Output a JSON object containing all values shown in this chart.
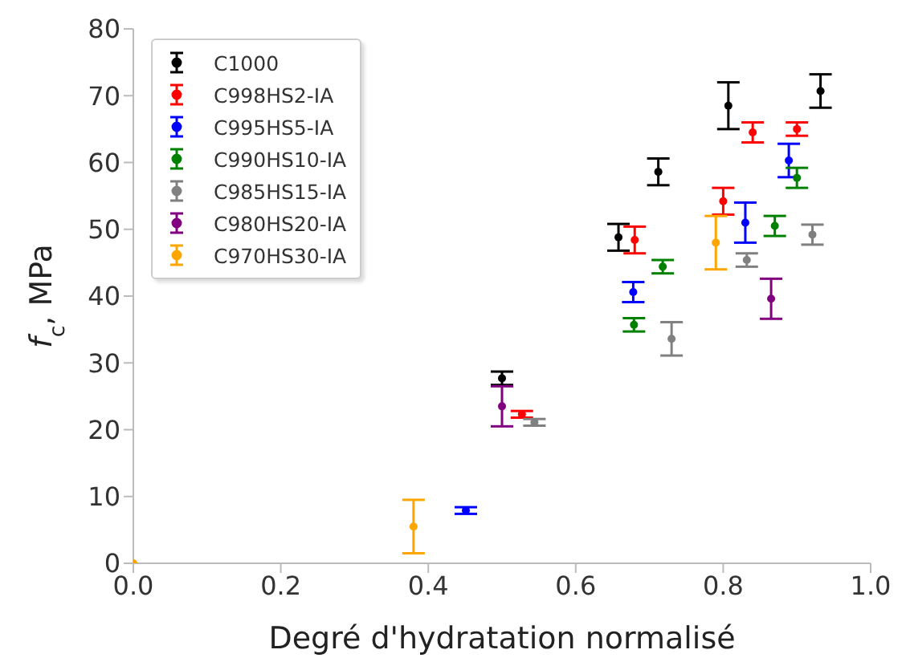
{
  "chart_data": {
    "type": "scatter",
    "xlabel": "Degré d'hydratation normalisé",
    "ylabel": "f$_{c}$, MPa",
    "xlim": [
      0,
      1
    ],
    "xticks": [
      {
        "value": 0,
        "label": "0.0"
      },
      0.2,
      0.4,
      0.6,
      0.8,
      {
        "value": 1,
        "label": "1.0"
      }
    ],
    "ylim": [
      0,
      80
    ],
    "yticks": [
      0,
      10,
      20,
      30,
      40,
      50,
      60,
      70,
      80
    ],
    "grid": false,
    "legend": "top left",
    "marker": "circle",
    "series": [
      {
        "name": "C1000",
        "color": "#000000",
        "x": [
          0.5,
          0.658,
          0.712,
          0.807,
          0.932
        ],
        "values": [
          27.7,
          48.8,
          58.6,
          68.5,
          70.7
        ],
        "errors": [
          1,
          2,
          2,
          3.5,
          2.5
        ]
      },
      {
        "name": "C998HS2-IA",
        "color": "#ff0000",
        "x": [
          0.527,
          0.68,
          0.8,
          0.84,
          0.9
        ],
        "values": [
          22.3,
          48.4,
          54.2,
          64.5,
          65
        ],
        "errors": [
          0.5,
          2,
          2,
          1.5,
          1
        ]
      },
      {
        "name": "C995HS5-IA",
        "color": "#0000ff",
        "x": [
          0.451,
          0.678,
          0.83,
          0.889
        ],
        "values": [
          7.9,
          40.6,
          51,
          60.3
        ],
        "errors": [
          0.5,
          1.5,
          3,
          2.5
        ]
      },
      {
        "name": "C990HS10-IA",
        "color": "#008000",
        "x": [
          0.679,
          0.718,
          0.87,
          0.9
        ],
        "values": [
          35.7,
          44.4,
          50.5,
          57.7
        ],
        "errors": [
          1,
          1,
          1.5,
          1.5
        ]
      },
      {
        "name": "C985HS15-IA",
        "color": "#808080",
        "x": [
          0.544,
          0.73,
          0.832,
          0.921
        ],
        "values": [
          21.1,
          33.6,
          45.4,
          49.2
        ],
        "errors": [
          0.5,
          2.5,
          1,
          1.5
        ]
      },
      {
        "name": "C980HS20-IA",
        "color": "#800080",
        "x": [
          0.5,
          0.865
        ],
        "values": [
          23.5,
          39.6
        ],
        "errors": [
          3,
          3
        ]
      },
      {
        "name": "C970HS30-IA",
        "color": "#ffa500",
        "x": [
          0,
          0.38,
          0.79
        ],
        "values": [
          0,
          5.5,
          48
        ],
        "errors": [
          0,
          4,
          4
        ]
      }
    ]
  }
}
